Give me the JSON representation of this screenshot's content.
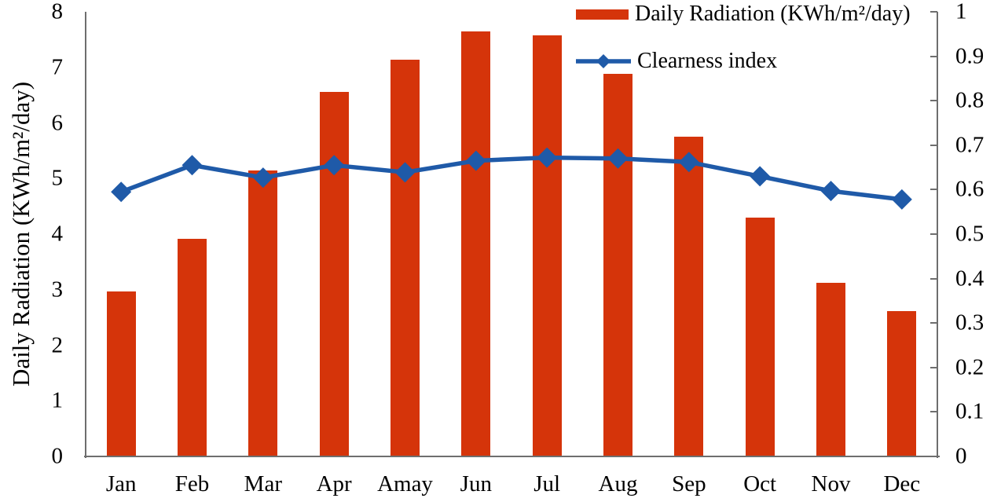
{
  "chart_data": {
    "type": "combo",
    "categories": [
      "Jan",
      "Feb",
      "Mar",
      "Apr",
      "Amay",
      "Jun",
      "Jul",
      "Aug",
      "Sep",
      "Oct",
      "Nov",
      "Dec"
    ],
    "series": [
      {
        "name": "Daily Radiation (KWh/m²/day)",
        "type": "bar",
        "axis": "left",
        "values": [
          2.97,
          3.92,
          5.14,
          6.56,
          7.14,
          7.65,
          7.57,
          6.88,
          5.75,
          4.29,
          3.13,
          2.62
        ]
      },
      {
        "name": "Clearness index",
        "type": "line",
        "axis": "right",
        "marker": "diamond",
        "values": [
          0.595,
          0.655,
          0.627,
          0.655,
          0.639,
          0.665,
          0.672,
          0.67,
          0.662,
          0.63,
          0.597,
          0.578
        ]
      }
    ],
    "left_axis": {
      "label": "Daily Radiation (KWh/m²/day)",
      "min": 0,
      "max": 8,
      "step": 1,
      "ticks": [
        "0",
        "1",
        "2",
        "3",
        "4",
        "5",
        "6",
        "7",
        "8"
      ]
    },
    "right_axis": {
      "min": 0,
      "max": 1,
      "step": 0.1,
      "ticks": [
        "0",
        "0.1",
        "0.2",
        "0.3",
        "0.4",
        "0.5",
        "0.6",
        "0.7",
        "0.8",
        "0.9",
        "1"
      ]
    },
    "legend_position": "top-right",
    "grid": false
  },
  "legend": {
    "bar_label": "Daily Radiation (KWh/m²/day)",
    "line_label": "Clearness index"
  },
  "colors": {
    "bar": "#d5340a",
    "line": "#1f5aa8",
    "axis": "#6e6e6e",
    "text": "#000000",
    "background": "#ffffff"
  }
}
